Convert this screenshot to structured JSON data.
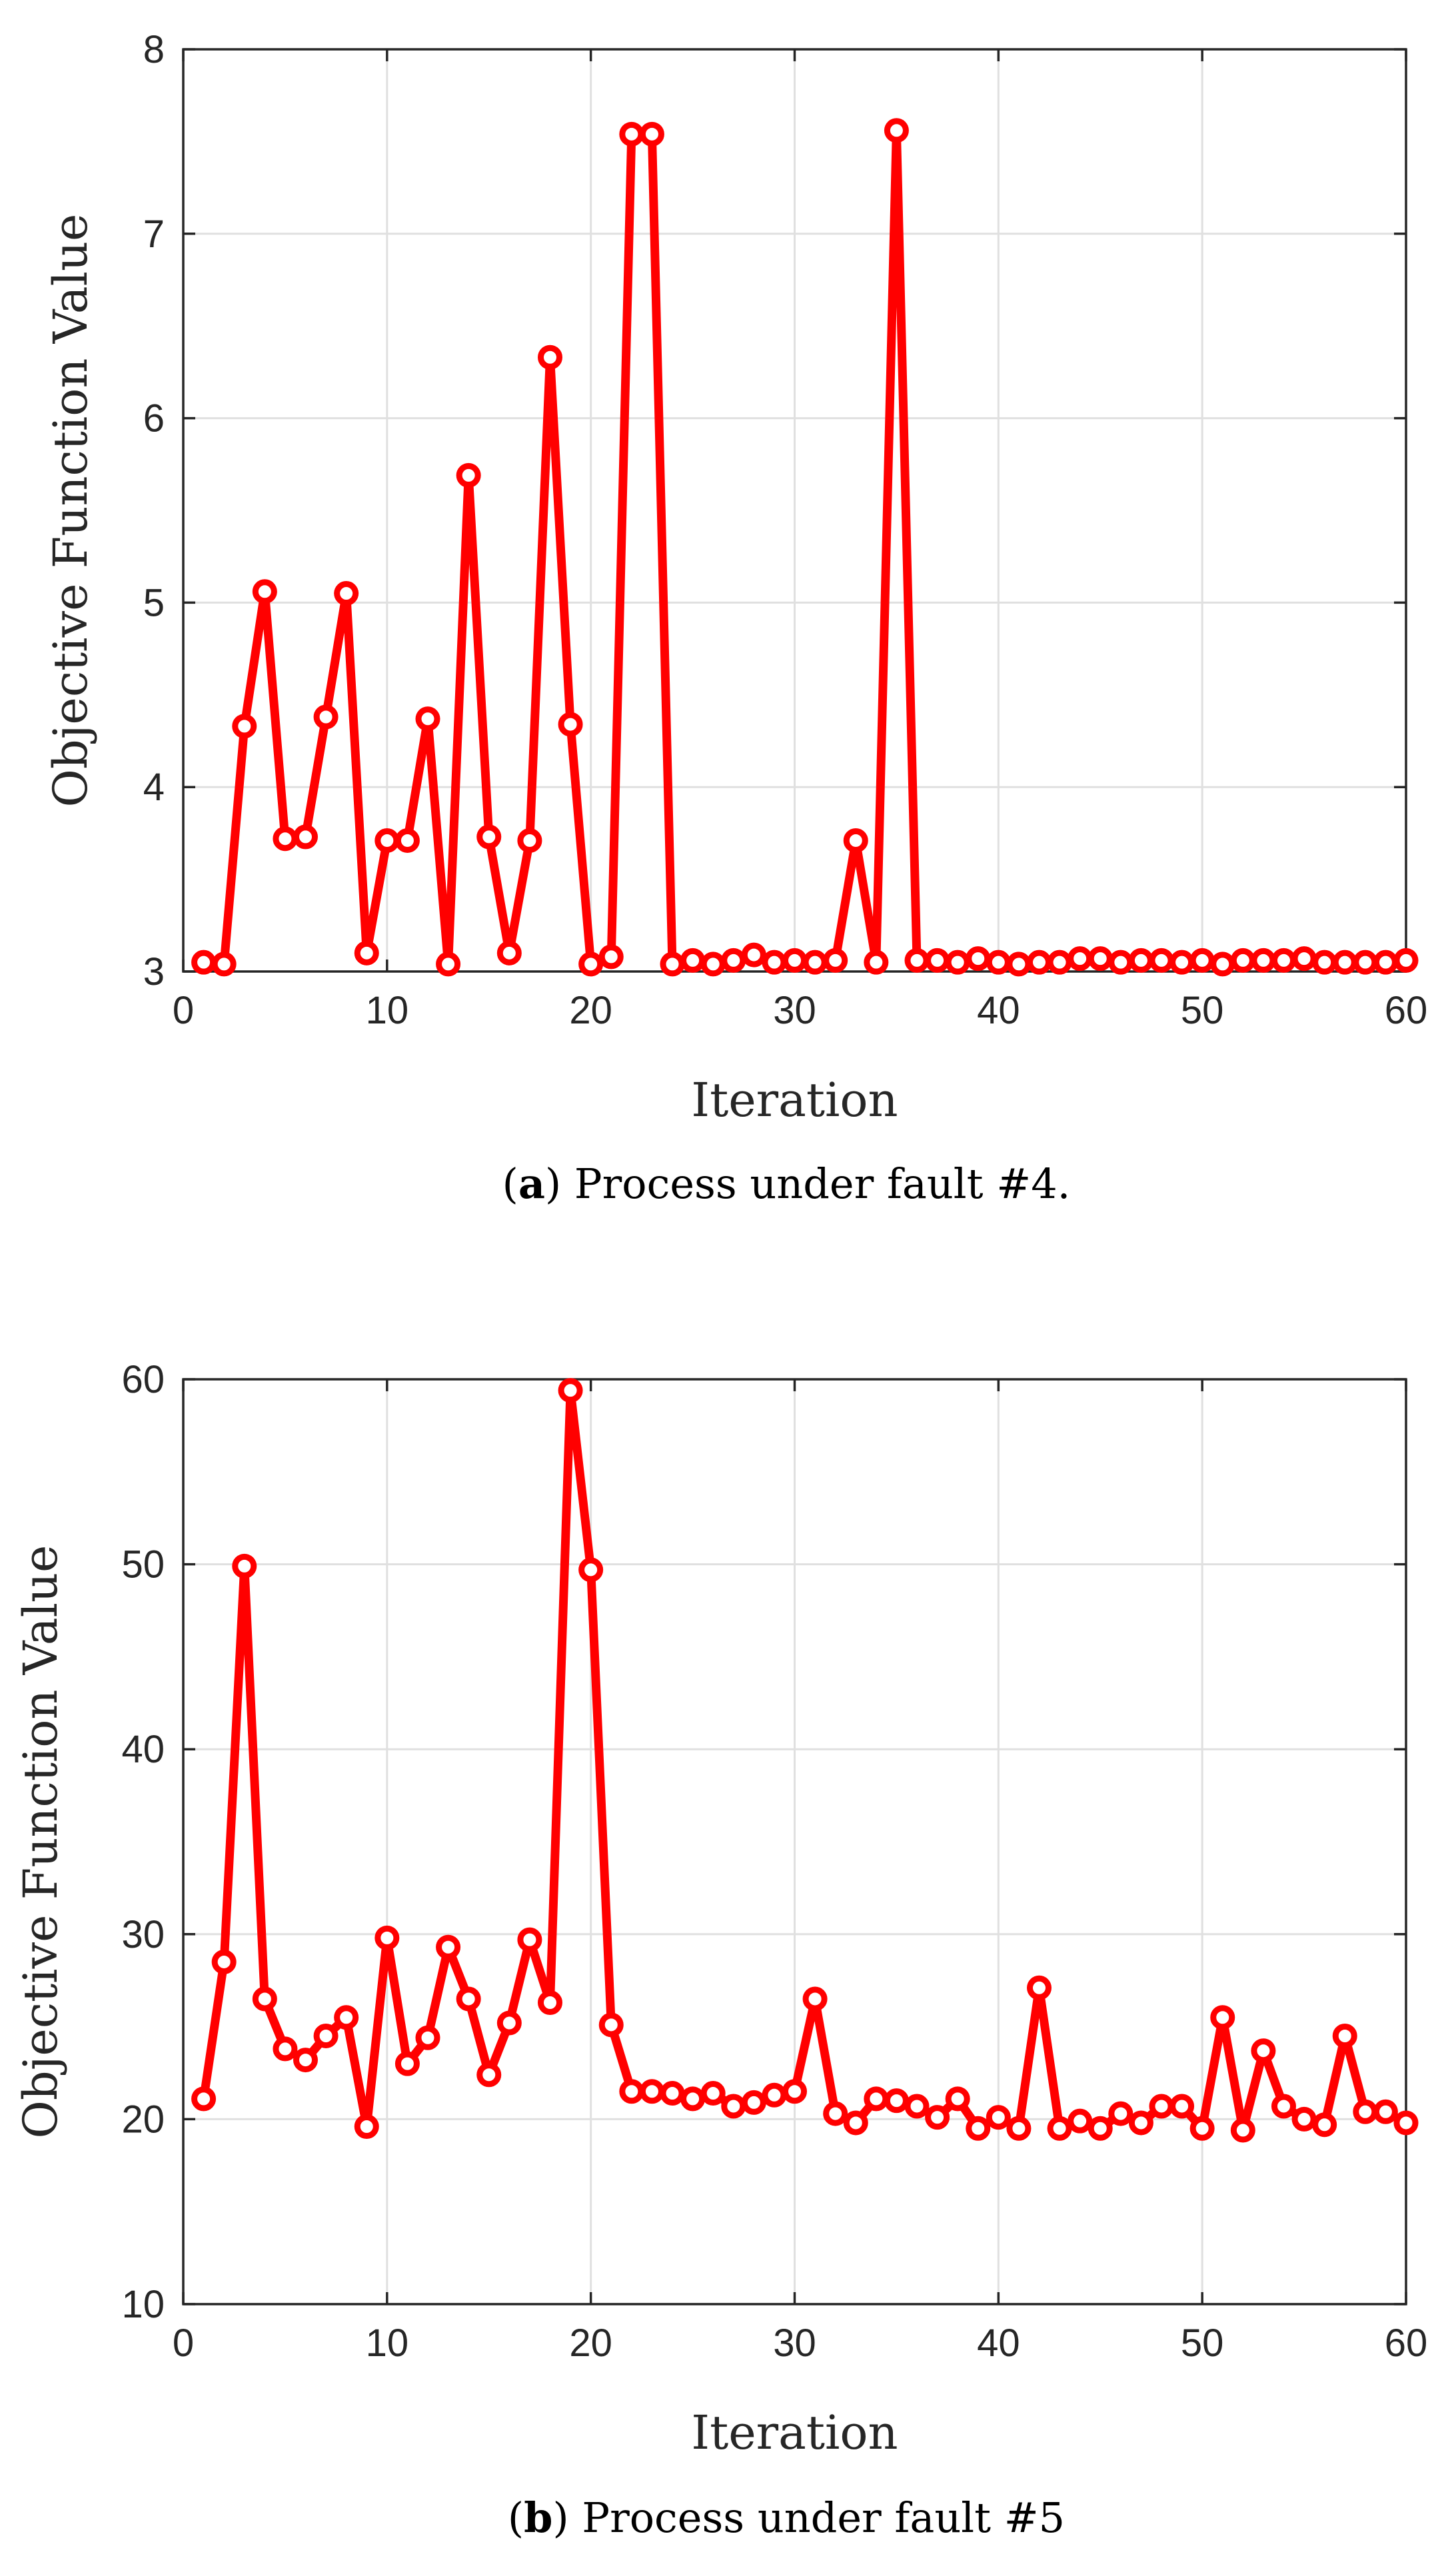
{
  "chart_data": [
    {
      "type": "line",
      "panel": "a",
      "caption_letter": "a",
      "caption_text": "Process under fault #4.",
      "xlabel": "Iteration",
      "ylabel": "Objective Function Value",
      "xlim": [
        0,
        60
      ],
      "ylim": [
        3,
        8
      ],
      "xticks": [
        0,
        10,
        20,
        30,
        40,
        50,
        60
      ],
      "yticks": [
        3,
        4,
        5,
        6,
        7,
        8
      ],
      "grid": true,
      "color": "#ff0000",
      "marker": "circle",
      "x": [
        1,
        2,
        3,
        4,
        5,
        6,
        7,
        8,
        9,
        10,
        11,
        12,
        13,
        14,
        15,
        16,
        17,
        18,
        19,
        20,
        21,
        22,
        23,
        24,
        25,
        26,
        27,
        28,
        29,
        30,
        31,
        32,
        33,
        34,
        35,
        36,
        37,
        38,
        39,
        40,
        41,
        42,
        43,
        44,
        45,
        46,
        47,
        48,
        49,
        50,
        51,
        52,
        53,
        54,
        55,
        56,
        57,
        58,
        59,
        60
      ],
      "values": [
        3.05,
        3.04,
        4.33,
        5.06,
        3.72,
        3.73,
        4.38,
        5.05,
        3.1,
        3.71,
        3.71,
        4.37,
        3.04,
        5.69,
        3.73,
        3.1,
        3.71,
        6.33,
        4.34,
        3.04,
        3.08,
        7.54,
        7.54,
        3.04,
        3.06,
        3.04,
        3.06,
        3.09,
        3.05,
        3.06,
        3.05,
        3.06,
        3.71,
        3.05,
        7.56,
        3.06,
        3.06,
        3.05,
        3.07,
        3.05,
        3.04,
        3.05,
        3.05,
        3.07,
        3.07,
        3.05,
        3.06,
        3.06,
        3.05,
        3.06,
        3.04,
        3.06,
        3.06,
        3.06,
        3.07,
        3.05,
        3.05,
        3.05,
        3.05,
        3.06
      ]
    },
    {
      "type": "line",
      "panel": "b",
      "caption_letter": "b",
      "caption_text": "Process under fault #5",
      "xlabel": "Iteration",
      "ylabel": "Objective Function Value",
      "xlim": [
        0,
        60
      ],
      "ylim": [
        10,
        60
      ],
      "xticks": [
        0,
        10,
        20,
        30,
        40,
        50,
        60
      ],
      "yticks": [
        10,
        20,
        30,
        40,
        50,
        60
      ],
      "grid": true,
      "color": "#ff0000",
      "marker": "circle",
      "x": [
        1,
        2,
        3,
        4,
        5,
        6,
        7,
        8,
        9,
        10,
        11,
        12,
        13,
        14,
        15,
        16,
        17,
        18,
        19,
        20,
        21,
        22,
        23,
        24,
        25,
        26,
        27,
        28,
        29,
        30,
        31,
        32,
        33,
        34,
        35,
        36,
        37,
        38,
        39,
        40,
        41,
        42,
        43,
        44,
        45,
        46,
        47,
        48,
        49,
        50,
        51,
        52,
        53,
        54,
        55,
        56,
        57,
        58,
        59,
        60
      ],
      "values": [
        21.1,
        28.5,
        49.9,
        26.5,
        23.8,
        23.2,
        24.5,
        25.5,
        19.6,
        29.8,
        23.0,
        24.4,
        29.3,
        26.5,
        22.4,
        25.2,
        29.7,
        26.3,
        59.4,
        49.7,
        25.1,
        21.5,
        21.5,
        21.4,
        21.1,
        21.4,
        20.7,
        20.9,
        21.3,
        21.5,
        26.5,
        20.3,
        19.8,
        21.1,
        21.0,
        20.7,
        20.1,
        21.1,
        19.5,
        20.1,
        19.5,
        27.1,
        19.5,
        19.9,
        19.5,
        20.3,
        19.8,
        20.7,
        20.7,
        19.5,
        25.5,
        19.4,
        23.7,
        20.7,
        20.0,
        19.7,
        24.5,
        20.4,
        20.4,
        19.8
      ]
    }
  ]
}
